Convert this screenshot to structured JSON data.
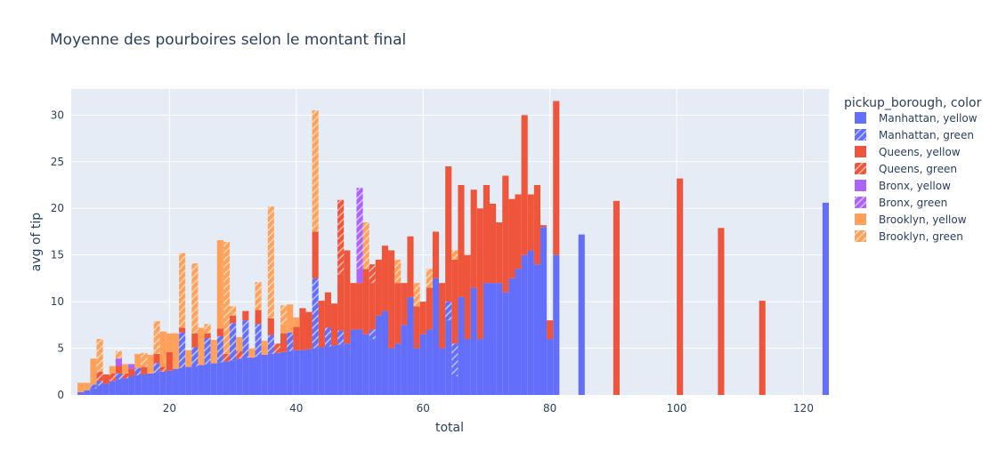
{
  "chart_data": {
    "type": "bar",
    "barmode": "stack",
    "title": "Moyenne des pourboires selon le montant final",
    "xlabel": "total",
    "ylabel": "avg of tip",
    "xlim": [
      4.5,
      124
    ],
    "ylim": [
      0,
      32.8
    ],
    "xticks": [
      20,
      40,
      60,
      80,
      100,
      120
    ],
    "yticks": [
      0,
      5,
      10,
      15,
      20,
      25,
      30
    ],
    "grid": true,
    "legend_title": "pickup_borough, color",
    "legend_position": "right",
    "series": [
      {
        "name": "Manhattan, yellow",
        "color": "#636efa",
        "pattern": "none",
        "points": [
          [
            6,
            0.3
          ],
          [
            7,
            0.5
          ],
          [
            8,
            0.7
          ],
          [
            9,
            1.0
          ],
          [
            10,
            1.2
          ],
          [
            11,
            1.5
          ],
          [
            12,
            1.7
          ],
          [
            13,
            1.8
          ],
          [
            14,
            2.0
          ],
          [
            15,
            2.1
          ],
          [
            16,
            2.2
          ],
          [
            17,
            2.3
          ],
          [
            18,
            2.4
          ],
          [
            19,
            2.5
          ],
          [
            20,
            2.6
          ],
          [
            21,
            2.8
          ],
          [
            22,
            2.9
          ],
          [
            23,
            3.0
          ],
          [
            24,
            3.1
          ],
          [
            25,
            3.2
          ],
          [
            26,
            3.3
          ],
          [
            27,
            3.4
          ],
          [
            28,
            3.5
          ],
          [
            29,
            3.6
          ],
          [
            30,
            3.7
          ],
          [
            31,
            3.9
          ],
          [
            32,
            4.0
          ],
          [
            33,
            4.0
          ],
          [
            34,
            4.1
          ],
          [
            35,
            4.3
          ],
          [
            36,
            4.4
          ],
          [
            37,
            4.5
          ],
          [
            38,
            4.6
          ],
          [
            39,
            4.7
          ],
          [
            40,
            4.8
          ],
          [
            41,
            4.8
          ],
          [
            42,
            4.9
          ],
          [
            43,
            5.0
          ],
          [
            44,
            5.1
          ],
          [
            45,
            5.2
          ],
          [
            46,
            5.3
          ],
          [
            47,
            5.4
          ],
          [
            48,
            5.5
          ],
          [
            49,
            7.0
          ],
          [
            50,
            7.0
          ],
          [
            51,
            6.5
          ],
          [
            52,
            6.0
          ],
          [
            53,
            8.5
          ],
          [
            54,
            9.0
          ],
          [
            55,
            5.0
          ],
          [
            56,
            5.5
          ],
          [
            57,
            7.5
          ],
          [
            58,
            10.5
          ],
          [
            59,
            5.0
          ],
          [
            60,
            6.5
          ],
          [
            61,
            7.0
          ],
          [
            62,
            12.5
          ],
          [
            63,
            5.0
          ],
          [
            64,
            8.0
          ],
          [
            65,
            2.0
          ],
          [
            66,
            10.5
          ],
          [
            67,
            6.0
          ],
          [
            68,
            11.5
          ],
          [
            69,
            6.0
          ],
          [
            70,
            12.0
          ],
          [
            71,
            12.0
          ],
          [
            72,
            12.0
          ],
          [
            73,
            11.0
          ],
          [
            74,
            12.5
          ],
          [
            75,
            13.5
          ],
          [
            76,
            15.0
          ],
          [
            77,
            15.5
          ],
          [
            78,
            14.0
          ],
          [
            79,
            18.0
          ],
          [
            80,
            6.0
          ],
          [
            81,
            15.0
          ],
          [
            85,
            17.2
          ],
          [
            123.5,
            20.6
          ]
        ]
      },
      {
        "name": "Manhattan, green",
        "color": "#636efa",
        "pattern": "hatch",
        "points": [
          [
            8,
            0.4
          ],
          [
            9,
            0.5
          ],
          [
            12,
            0.6
          ],
          [
            15,
            0.8
          ],
          [
            18,
            1.0
          ],
          [
            22,
            3.8
          ],
          [
            24,
            2.0
          ],
          [
            26,
            2.8
          ],
          [
            28,
            2.8
          ],
          [
            30,
            4.0
          ],
          [
            32,
            4.0
          ],
          [
            34,
            3.5
          ],
          [
            36,
            2.0
          ],
          [
            39,
            2.0
          ],
          [
            43,
            7.5
          ],
          [
            45,
            2.0
          ],
          [
            47,
            1.5
          ],
          [
            52,
            1.0
          ],
          [
            64,
            2.0
          ],
          [
            65,
            3.5
          ]
        ]
      },
      {
        "name": "Queens, yellow",
        "color": "#ef553b",
        "pattern": "none",
        "points": [
          [
            10,
            1.0
          ],
          [
            12,
            0.8
          ],
          [
            14,
            0.8
          ],
          [
            16,
            0.8
          ],
          [
            18,
            1.0
          ],
          [
            20,
            2.0
          ],
          [
            22,
            0.5
          ],
          [
            24,
            1.5
          ],
          [
            26,
            0.5
          ],
          [
            28,
            0.8
          ],
          [
            30,
            0.8
          ],
          [
            32,
            1.0
          ],
          [
            34,
            1.5
          ],
          [
            36,
            1.8
          ],
          [
            38,
            2.0
          ],
          [
            40,
            2.5
          ],
          [
            41,
            4.5
          ],
          [
            42,
            4.0
          ],
          [
            43,
            5.0
          ],
          [
            44,
            5.0
          ],
          [
            45,
            3.8
          ],
          [
            46,
            4.5
          ],
          [
            47,
            6.0
          ],
          [
            48,
            10.0
          ],
          [
            49,
            5.0
          ],
          [
            50,
            5.0
          ],
          [
            51,
            7.0
          ],
          [
            52,
            5.0
          ],
          [
            53,
            6.0
          ],
          [
            54,
            7.0
          ],
          [
            55,
            10.5
          ],
          [
            56,
            6.5
          ],
          [
            57,
            4.5
          ],
          [
            58,
            6.5
          ],
          [
            59,
            4.5
          ],
          [
            60,
            3.5
          ],
          [
            61,
            4.5
          ],
          [
            62,
            5.0
          ],
          [
            63,
            7.0
          ],
          [
            64,
            14.5
          ],
          [
            65,
            9.0
          ],
          [
            66,
            12.0
          ],
          [
            67,
            9.0
          ],
          [
            68,
            10.5
          ],
          [
            69,
            14.0
          ],
          [
            70,
            10.5
          ],
          [
            71,
            8.5
          ],
          [
            72,
            6.5
          ],
          [
            73,
            12.5
          ],
          [
            74,
            8.5
          ],
          [
            75,
            8.0
          ],
          [
            76,
            15.0
          ],
          [
            77,
            6.0
          ],
          [
            78,
            8.5
          ],
          [
            79,
            0.2
          ],
          [
            80,
            2.0
          ],
          [
            81,
            16.5
          ],
          [
            90.5,
            20.8
          ],
          [
            100.5,
            23.2
          ],
          [
            107,
            17.9
          ],
          [
            113.5,
            10.1
          ]
        ]
      },
      {
        "name": "Queens, green",
        "color": "#ef553b",
        "pattern": "hatch",
        "points": [
          [
            9,
            1.0
          ],
          [
            11,
            0.8
          ],
          [
            13,
            0.5
          ],
          [
            19,
            0.5
          ],
          [
            29,
            0.8
          ],
          [
            31,
            0.8
          ],
          [
            37,
            1.0
          ],
          [
            47,
            8.0
          ],
          [
            52,
            2.0
          ]
        ]
      },
      {
        "name": "Bronx, yellow",
        "color": "#ab63fa",
        "pattern": "none",
        "points": [
          [
            12,
            0.8
          ],
          [
            14,
            0.5
          ],
          [
            50,
            1.5
          ]
        ]
      },
      {
        "name": "Bronx, green",
        "color": "#ab63fa",
        "pattern": "hatch",
        "points": [
          [
            50,
            8.7
          ]
        ]
      },
      {
        "name": "Brooklyn, yellow",
        "color": "#ffa15a",
        "pattern": "none",
        "points": [
          [
            6,
            1.0
          ],
          [
            7,
            0.8
          ],
          [
            8,
            2.8
          ],
          [
            11,
            0.8
          ],
          [
            13,
            1.0
          ],
          [
            15,
            1.5
          ],
          [
            17,
            2.0
          ],
          [
            19,
            3.8
          ],
          [
            20,
            2.0
          ],
          [
            21,
            3.8
          ],
          [
            23,
            1.8
          ],
          [
            25,
            4.0
          ],
          [
            27,
            2.5
          ],
          [
            28,
            9.5
          ],
          [
            31,
            1.5
          ],
          [
            33,
            1.0
          ],
          [
            35,
            1.5
          ],
          [
            38,
            1.0
          ],
          [
            39,
            3.0
          ],
          [
            40,
            1.0
          ]
        ]
      },
      {
        "name": "Brooklyn, green",
        "color": "#ffa15a",
        "pattern": "hatch",
        "points": [
          [
            9,
            3.5
          ],
          [
            12,
            0.8
          ],
          [
            16,
            1.5
          ],
          [
            18,
            3.5
          ],
          [
            22,
            8.0
          ],
          [
            24,
            7.5
          ],
          [
            26,
            1.0
          ],
          [
            29,
            12.0
          ],
          [
            30,
            1.0
          ],
          [
            34,
            3.0
          ],
          [
            36,
            12.0
          ],
          [
            38,
            2.0
          ],
          [
            43,
            13.0
          ],
          [
            51,
            5.0
          ],
          [
            56,
            2.5
          ],
          [
            59,
            2.5
          ],
          [
            61,
            2.0
          ],
          [
            65,
            1.0
          ]
        ]
      }
    ]
  }
}
